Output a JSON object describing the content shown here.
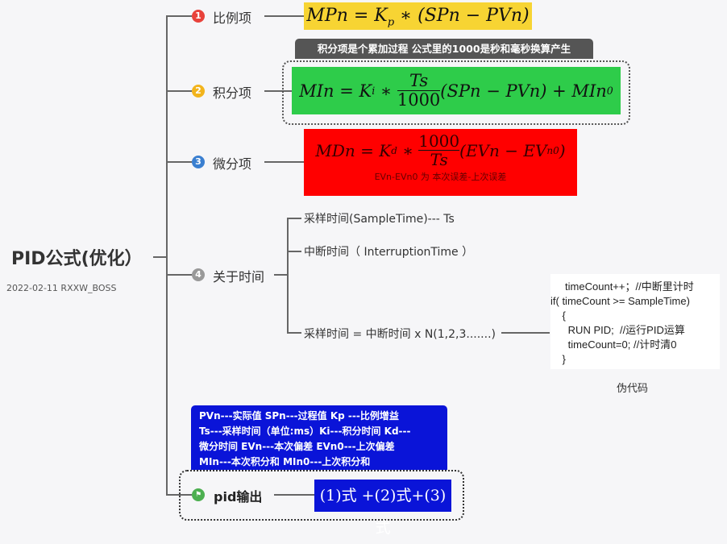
{
  "root": {
    "title": "PID公式(优化）",
    "date": "2022-02-11 RXXW_BOSS"
  },
  "branches": [
    {
      "num": "1",
      "label": "比例项",
      "color": "#e8423b"
    },
    {
      "num": "2",
      "label": "积分项",
      "color": "#f2b41c"
    },
    {
      "num": "3",
      "label": "微分项",
      "color": "#3a7fd0"
    },
    {
      "num": "4",
      "label": "关于时间",
      "color": "#999999"
    },
    {
      "num": "",
      "label": "pid输出",
      "color": "#4caf50"
    }
  ],
  "formulas": {
    "p": {
      "lhs": "MPn = K",
      "sub": "p",
      "rhs": " ∗ (SPn − PVn)",
      "bg": "#f7d433"
    },
    "i": {
      "lhs": "MIn = K",
      "sub": "i",
      "op": " ∗ ",
      "num": "Ts",
      "den": "1000",
      "rhs": "(SPn − PVn) + MIn",
      "rhs_sub": "0",
      "bg": "#2ecc4a"
    },
    "d": {
      "lhs": "MDn = K",
      "sub": "d",
      "op": " ∗ ",
      "num": "1000",
      "den": "Ts",
      "rhs": "(EVn − EV",
      "rhs_sub": "n0",
      "close": ")",
      "bg": "#ff0000",
      "note": "EVn-EVn0 为 本次误差-上次误差"
    }
  },
  "integral_note": "积分项是个累加过程  公式里的1000是秒和毫秒换算产生",
  "time": {
    "items": [
      "采样时间(SampleTime)--- Ts",
      "中断时间（ InterruptionTime ）",
      "采样时间 = 中断时间 x  N(1,2,3.......)"
    ],
    "code": [
      "     timeCount++；//中断里计时",
      "if( timeCount >= SampleTime)",
      "    {",
      "      RUN PID;  //运行PID运算",
      "      timeCount=0; //计时清0",
      "    }"
    ],
    "code_caption": "伪代码"
  },
  "legend_note": [
    "PVn---实际值    SPn---过程值   Kp ---比例增益",
    "Ts---采样时间（单位:ms）Ki---积分时间  Kd---",
    "微分时间  EVn---本次偏差  EVn0---上次偏差",
    "MIn---本次积分和   MIn0---上次积分和"
  ],
  "output": {
    "formula": "(1)式 +(2)式+(3)式",
    "bg": "#0a14d8"
  }
}
